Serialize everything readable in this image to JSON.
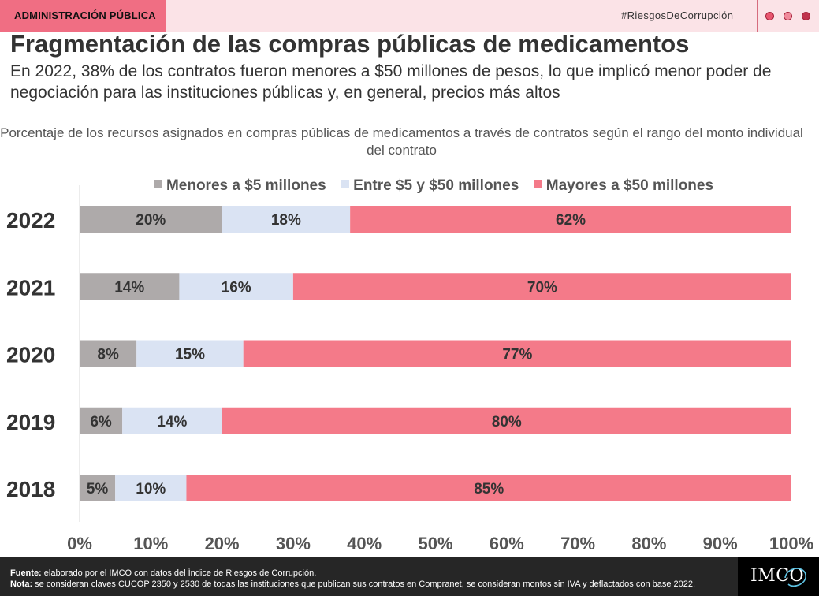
{
  "header": {
    "section": "ADMINISTRACIÓN PÚBLICA",
    "hashtag": "#RiesgosDeCorrupción",
    "dots": [
      "#e8566f",
      "#f08a9b",
      "#c0334d"
    ]
  },
  "title": "Fragmentación de las compras públicas de medicamentos",
  "subtitle": "En 2022, 38% de los contratos fueron menores a $50 millones de pesos, lo que implicó menor poder de negociación para las instituciones públicas y, en general, precios más altos",
  "chart_data": {
    "type": "bar",
    "orientation": "horizontal",
    "stacked": true,
    "title": "Porcentaje de los recursos asignados en compras públicas de medicamentos a través de contratos según el rango del monto individual del contrato",
    "categories": [
      "2022",
      "2021",
      "2020",
      "2019",
      "2018"
    ],
    "series": [
      {
        "name": "Menores a $5 millones",
        "color": "#aeaaaa",
        "values": [
          20,
          14,
          8,
          6,
          5
        ],
        "labels": [
          "20%",
          "14%",
          "8%",
          "6%",
          "5%"
        ]
      },
      {
        "name": "Entre $5 y $50 millones",
        "color": "#dae3f3",
        "values": [
          18,
          16,
          15,
          14,
          10
        ],
        "labels": [
          "18%",
          "16%",
          "15%",
          "14%",
          "10%"
        ]
      },
      {
        "name": "Mayores a $50 millones",
        "color": "#f47a89",
        "values": [
          62,
          70,
          77,
          80,
          85
        ],
        "labels": [
          "62%",
          "70%",
          "77%",
          "80%",
          "85%"
        ]
      }
    ],
    "xlim": [
      0,
      100
    ],
    "xticks": [
      0,
      10,
      20,
      30,
      40,
      50,
      60,
      70,
      80,
      90,
      100
    ],
    "xtick_labels": [
      "0%",
      "10%",
      "20%",
      "30%",
      "40%",
      "50%",
      "60%",
      "70%",
      "80%",
      "90%",
      "100%"
    ],
    "legend_position": "top",
    "grid": false
  },
  "footer": {
    "source_label": "Fuente:",
    "source_text": " elaborado por el IMCO con datos del Índice de Riesgos de Corrupción.",
    "note_label": "Nota:",
    "note_text": " se consideran claves CUCOP 2350 y 2530 de todas las instituciones que publican sus contratos en Compranet, se consideran montos sin IVA y deflactados con base 2022.",
    "logo": "IMCO"
  }
}
